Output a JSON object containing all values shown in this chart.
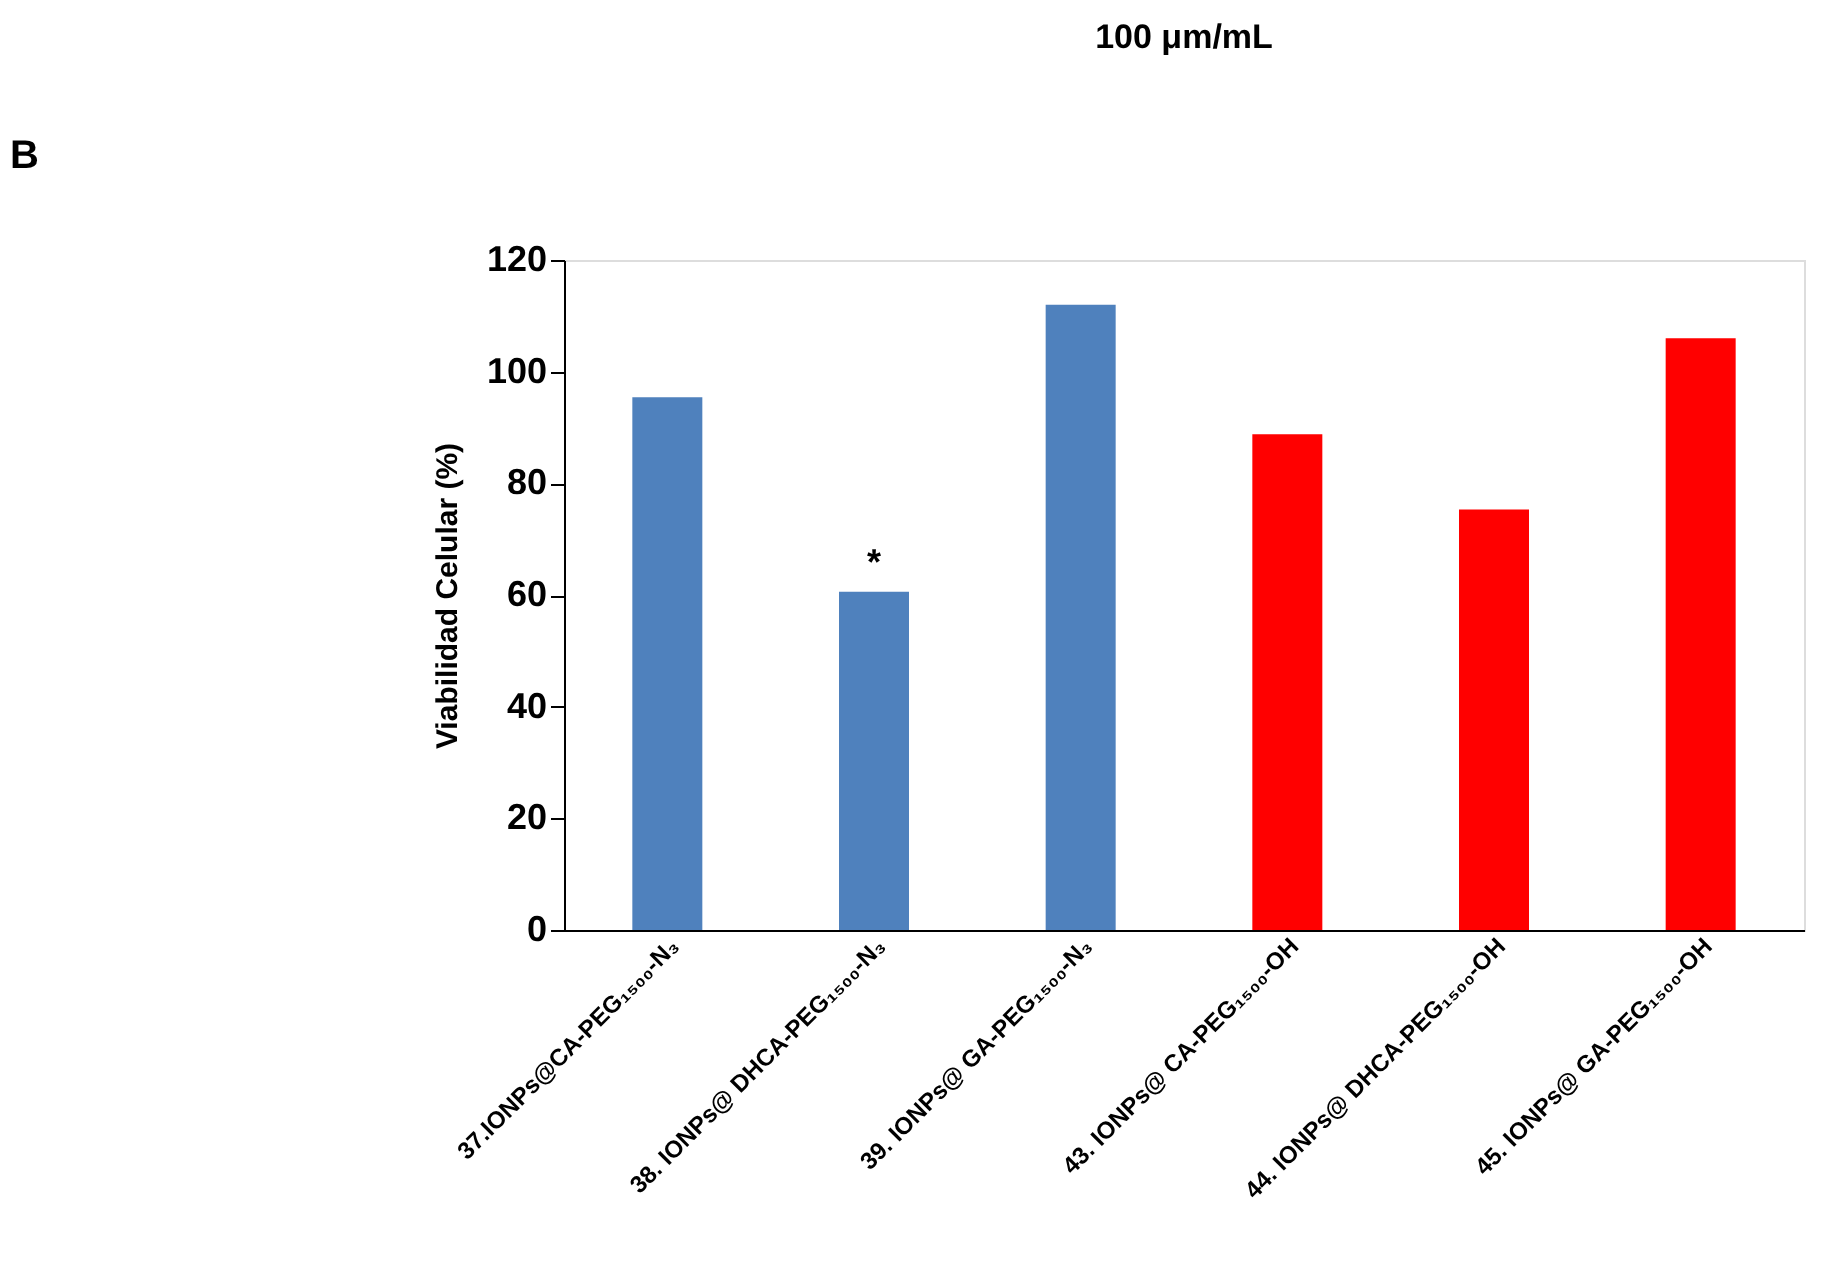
{
  "chart_data": {
    "type": "bar",
    "title": "100 μm/mL",
    "ylabel": "Viabilidad Celular (%)",
    "categories": [
      "37.IONPs@CA-PEG₁₅₀₀-N₃",
      "38. IONPs@ DHCA-PEG₁₅₀₀-N₃",
      "39. IONPs@ GA-PEG₁₅₀₀-N₃",
      "43. IONPs@ CA-PEG₁₅₀₀-OH",
      "44. IONPs@ DHCA-PEG₁₅₀₀-OH",
      "45. IONPs@ GA-PEG₁₅₀₀-OH"
    ],
    "values": [
      95.4,
      60.6,
      112.0,
      88.8,
      75.3,
      106.0
    ],
    "colors": [
      "#4f81bd",
      "#4f81bd",
      "#4f81bd",
      "#ff0000",
      "#ff0000",
      "#ff0000"
    ],
    "ylim": [
      0,
      120
    ],
    "yticks": [
      0,
      20,
      40,
      60,
      80,
      100,
      120
    ],
    "grid": false,
    "annotations": [
      "B",
      {
        "text": "*",
        "x": "38. IONPs@ DHCA-PEG₁₅₀₀-N₃",
        "y": 60.6
      }
    ]
  }
}
